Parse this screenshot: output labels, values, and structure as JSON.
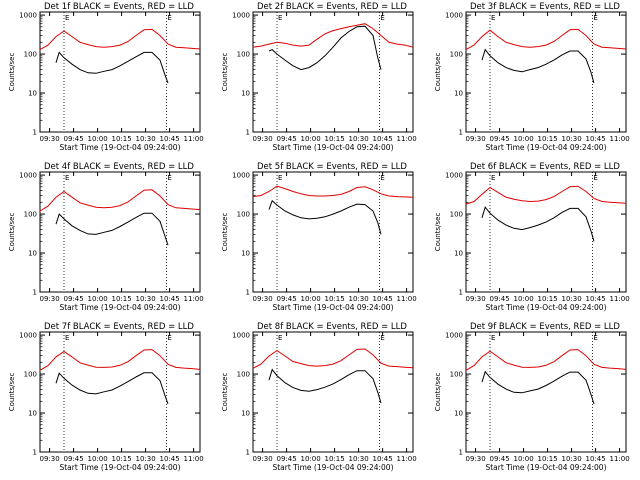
{
  "panel_titles": [
    "Det 1f BLACK = Events, RED = LLD",
    "Det 2f BLACK = Events, RED = LLD",
    "Det 3f BLACK = Events, RED = LLD",
    "Det 4f BLACK = Events, RED = LLD",
    "Det 5f BLACK = Events, RED = LLD",
    "Det 6f BLACK = Events, RED = LLD",
    "Det 7f BLACK = Events, RED = LLD",
    "Det 8f BLACK = Events, RED = LLD",
    "Det 9f BLACK = Events, RED = LLD"
  ],
  "shared": {
    "xlabel": "Start Time (19-Oct-04 09:24:00)",
    "ylabel": "Counts/sec",
    "x_ticks": [
      "09:30",
      "09:45",
      "10:00",
      "10:15",
      "10:30",
      "10:45",
      "11:00"
    ],
    "y_ticks": [
      "1",
      "10",
      "100",
      "1000"
    ],
    "marker_label": "E",
    "colors": {
      "events": "#000000",
      "lld": "#e00000",
      "axes": "#000000"
    }
  },
  "chart_data": [
    {
      "type": "line",
      "title": "Det 1f BLACK = Events, RED = LLD",
      "x_units": "minutes since 09:24",
      "xlim": [
        0,
        100
      ],
      "ylim": [
        1,
        1200
      ],
      "yscale": "log",
      "markers_x": [
        15,
        79
      ],
      "series": [
        {
          "name": "LLD",
          "color": "#e00000",
          "x": [
            0,
            5,
            10,
            15,
            20,
            25,
            30,
            35,
            40,
            45,
            50,
            55,
            60,
            65,
            70,
            75,
            80,
            85,
            90,
            95,
            100
          ],
          "values": [
            130,
            170,
            280,
            390,
            280,
            200,
            175,
            155,
            150,
            155,
            170,
            210,
            300,
            420,
            430,
            300,
            180,
            150,
            145,
            140,
            135
          ]
        },
        {
          "name": "Events",
          "color": "#000000",
          "x": [
            10,
            12,
            15,
            20,
            25,
            30,
            35,
            40,
            45,
            50,
            55,
            60,
            65,
            70,
            75,
            78,
            80
          ],
          "values": [
            60,
            110,
            80,
            55,
            40,
            33,
            32,
            36,
            40,
            50,
            65,
            85,
            110,
            110,
            70,
            30,
            18
          ]
        }
      ]
    },
    {
      "type": "line",
      "title": "Det 2f BLACK = Events, RED = LLD",
      "x_units": "minutes since 09:24",
      "xlim": [
        0,
        100
      ],
      "ylim": [
        1,
        1200
      ],
      "yscale": "log",
      "markers_x": [
        15,
        79
      ],
      "series": [
        {
          "name": "LLD",
          "color": "#e00000",
          "x": [
            0,
            5,
            10,
            15,
            20,
            25,
            30,
            35,
            40,
            45,
            50,
            55,
            60,
            65,
            70,
            75,
            80,
            85,
            90,
            95,
            100
          ],
          "values": [
            150,
            160,
            180,
            200,
            190,
            170,
            160,
            170,
            240,
            330,
            400,
            450,
            500,
            550,
            600,
            450,
            300,
            200,
            180,
            170,
            150
          ]
        },
        {
          "name": "Events",
          "color": "#000000",
          "x": [
            10,
            12,
            15,
            20,
            25,
            30,
            35,
            40,
            45,
            50,
            55,
            60,
            65,
            70,
            75,
            78,
            80
          ],
          "values": [
            120,
            130,
            100,
            70,
            50,
            40,
            45,
            60,
            90,
            150,
            260,
            380,
            500,
            520,
            300,
            80,
            40
          ]
        }
      ]
    },
    {
      "type": "line",
      "title": "Det 3f BLACK = Events, RED = LLD",
      "x_units": "minutes since 09:24",
      "xlim": [
        0,
        100
      ],
      "ylim": [
        1,
        1200
      ],
      "yscale": "log",
      "markers_x": [
        15,
        79
      ],
      "series": [
        {
          "name": "LLD",
          "color": "#e00000",
          "x": [
            0,
            5,
            10,
            15,
            20,
            25,
            30,
            35,
            40,
            45,
            50,
            55,
            60,
            65,
            70,
            75,
            80,
            85,
            90,
            95,
            100
          ],
          "values": [
            130,
            170,
            280,
            410,
            280,
            200,
            175,
            155,
            150,
            155,
            170,
            210,
            300,
            420,
            430,
            300,
            180,
            150,
            145,
            140,
            135
          ]
        },
        {
          "name": "Events",
          "color": "#000000",
          "x": [
            10,
            12,
            15,
            20,
            25,
            30,
            35,
            40,
            45,
            50,
            55,
            60,
            65,
            70,
            75,
            78,
            80
          ],
          "values": [
            70,
            130,
            90,
            60,
            45,
            38,
            35,
            40,
            45,
            55,
            70,
            95,
            120,
            120,
            75,
            35,
            18
          ]
        }
      ]
    },
    {
      "type": "line",
      "title": "Det 4f BLACK = Events, RED = LLD",
      "x_units": "minutes since 09:24",
      "xlim": [
        0,
        100
      ],
      "ylim": [
        1,
        1200
      ],
      "yscale": "log",
      "markers_x": [
        15,
        79
      ],
      "series": [
        {
          "name": "LLD",
          "color": "#e00000",
          "x": [
            0,
            5,
            10,
            15,
            20,
            25,
            30,
            35,
            40,
            45,
            50,
            55,
            60,
            65,
            70,
            75,
            80,
            85,
            90,
            95,
            100
          ],
          "values": [
            120,
            160,
            270,
            380,
            270,
            195,
            170,
            150,
            145,
            150,
            165,
            205,
            290,
            410,
            420,
            290,
            175,
            145,
            140,
            135,
            130
          ]
        },
        {
          "name": "Events",
          "color": "#000000",
          "x": [
            10,
            12,
            15,
            20,
            25,
            30,
            35,
            40,
            45,
            50,
            55,
            60,
            65,
            70,
            75,
            78,
            80
          ],
          "values": [
            55,
            100,
            75,
            50,
            38,
            31,
            30,
            34,
            38,
            48,
            62,
            82,
            105,
            105,
            65,
            28,
            16
          ]
        }
      ]
    },
    {
      "type": "line",
      "title": "Det 5f BLACK = Events, RED = LLD",
      "x_units": "minutes since 09:24",
      "xlim": [
        0,
        100
      ],
      "ylim": [
        1,
        1200
      ],
      "yscale": "log",
      "markers_x": [
        15,
        79
      ],
      "series": [
        {
          "name": "LLD",
          "color": "#e00000",
          "x": [
            0,
            5,
            10,
            15,
            20,
            25,
            30,
            35,
            40,
            45,
            50,
            55,
            60,
            65,
            70,
            75,
            80,
            85,
            90,
            95,
            100
          ],
          "values": [
            280,
            300,
            380,
            520,
            450,
            380,
            330,
            300,
            290,
            290,
            300,
            320,
            380,
            480,
            500,
            420,
            330,
            290,
            280,
            275,
            270
          ]
        },
        {
          "name": "Events",
          "color": "#000000",
          "x": [
            10,
            12,
            15,
            20,
            25,
            30,
            35,
            40,
            45,
            50,
            55,
            60,
            65,
            70,
            75,
            78,
            80
          ],
          "values": [
            130,
            220,
            170,
            120,
            95,
            80,
            75,
            78,
            85,
            100,
            120,
            150,
            180,
            175,
            120,
            60,
            30
          ]
        }
      ]
    },
    {
      "type": "line",
      "title": "Det 6f BLACK = Events, RED = LLD",
      "x_units": "minutes since 09:24",
      "xlim": [
        0,
        100
      ],
      "ylim": [
        1,
        1200
      ],
      "yscale": "log",
      "markers_x": [
        15,
        79
      ],
      "series": [
        {
          "name": "LLD",
          "color": "#e00000",
          "x": [
            0,
            5,
            10,
            15,
            20,
            25,
            30,
            35,
            40,
            45,
            50,
            55,
            60,
            65,
            70,
            75,
            80,
            85,
            90,
            95,
            100
          ],
          "values": [
            180,
            210,
            320,
            480,
            360,
            270,
            240,
            220,
            210,
            215,
            235,
            280,
            380,
            500,
            520,
            380,
            250,
            210,
            200,
            195,
            190
          ]
        },
        {
          "name": "Events",
          "color": "#000000",
          "x": [
            10,
            12,
            15,
            20,
            25,
            30,
            35,
            40,
            45,
            50,
            55,
            60,
            65,
            70,
            75,
            78,
            80
          ],
          "values": [
            80,
            150,
            105,
            70,
            52,
            43,
            40,
            45,
            52,
            62,
            80,
            110,
            140,
            140,
            85,
            38,
            20
          ]
        }
      ]
    },
    {
      "type": "line",
      "title": "Det 7f BLACK = Events, RED = LLD",
      "x_units": "minutes since 09:24",
      "xlim": [
        0,
        100
      ],
      "ylim": [
        1,
        1200
      ],
      "yscale": "log",
      "markers_x": [
        15,
        79
      ],
      "series": [
        {
          "name": "LLD",
          "color": "#e00000",
          "x": [
            0,
            5,
            10,
            15,
            20,
            25,
            30,
            35,
            40,
            45,
            50,
            55,
            60,
            65,
            70,
            75,
            80,
            85,
            90,
            95,
            100
          ],
          "values": [
            125,
            165,
            275,
            380,
            275,
            195,
            170,
            150,
            148,
            152,
            168,
            208,
            295,
            415,
            425,
            295,
            178,
            148,
            142,
            138,
            132
          ]
        },
        {
          "name": "Events",
          "color": "#000000",
          "x": [
            10,
            12,
            15,
            20,
            25,
            30,
            35,
            40,
            45,
            50,
            55,
            60,
            65,
            70,
            75,
            78,
            80
          ],
          "values": [
            58,
            105,
            78,
            52,
            39,
            32,
            31,
            35,
            39,
            49,
            64,
            84,
            108,
            108,
            68,
            29,
            17
          ]
        }
      ]
    },
    {
      "type": "line",
      "title": "Det 8f BLACK = Events, RED = LLD",
      "x_units": "minutes since 09:24",
      "xlim": [
        0,
        100
      ],
      "ylim": [
        1,
        1200
      ],
      "yscale": "log",
      "markers_x": [
        15,
        79
      ],
      "series": [
        {
          "name": "LLD",
          "color": "#e00000",
          "x": [
            0,
            5,
            10,
            15,
            20,
            25,
            30,
            35,
            40,
            45,
            50,
            55,
            60,
            65,
            70,
            75,
            80,
            85,
            90,
            95,
            100
          ],
          "values": [
            140,
            180,
            290,
            400,
            290,
            210,
            185,
            165,
            160,
            165,
            180,
            220,
            310,
            430,
            440,
            310,
            190,
            160,
            155,
            150,
            145
          ]
        },
        {
          "name": "Events",
          "color": "#000000",
          "x": [
            10,
            12,
            15,
            20,
            25,
            30,
            35,
            40,
            45,
            50,
            55,
            60,
            65,
            70,
            75,
            78,
            80
          ],
          "values": [
            70,
            130,
            90,
            60,
            45,
            38,
            36,
            40,
            46,
            56,
            72,
            96,
            122,
            122,
            76,
            34,
            18
          ]
        }
      ]
    },
    {
      "type": "line",
      "title": "Det 9f BLACK = Events, RED = LLD",
      "x_units": "minutes since 09:24",
      "xlim": [
        0,
        100
      ],
      "ylim": [
        1,
        1200
      ],
      "yscale": "log",
      "markers_x": [
        15,
        79
      ],
      "series": [
        {
          "name": "LLD",
          "color": "#e00000",
          "x": [
            0,
            5,
            10,
            15,
            20,
            25,
            30,
            35,
            40,
            45,
            50,
            55,
            60,
            65,
            70,
            75,
            80,
            85,
            90,
            95,
            100
          ],
          "values": [
            125,
            165,
            275,
            385,
            275,
            195,
            170,
            150,
            148,
            152,
            168,
            208,
            295,
            415,
            425,
            295,
            178,
            148,
            142,
            138,
            132
          ]
        },
        {
          "name": "Events",
          "color": "#000000",
          "x": [
            10,
            12,
            15,
            20,
            25,
            30,
            35,
            40,
            45,
            50,
            55,
            60,
            65,
            70,
            75,
            78,
            80
          ],
          "values": [
            62,
            115,
            82,
            55,
            41,
            34,
            33,
            37,
            41,
            51,
            66,
            88,
            112,
            112,
            70,
            31,
            17
          ]
        }
      ]
    }
  ]
}
